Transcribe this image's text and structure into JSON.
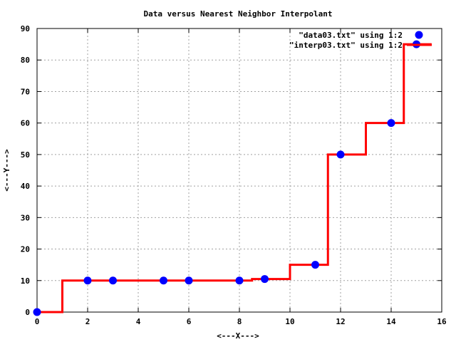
{
  "chart_data": {
    "type": "scatter",
    "title": "Data versus Nearest Neighbor Interpolant",
    "xlabel": "<---X--->",
    "ylabel": "<---Y--->",
    "xlim": [
      0,
      16
    ],
    "ylim": [
      0,
      90
    ],
    "xticks": [
      0,
      2,
      4,
      6,
      8,
      10,
      12,
      14,
      16
    ],
    "yticks": [
      0,
      10,
      20,
      30,
      40,
      50,
      60,
      70,
      80,
      90
    ],
    "grid": true,
    "legend_position": "top-right",
    "series": [
      {
        "name": "\"data03.txt\" using 1:2",
        "kind": "points",
        "color": "#0000ff",
        "x": [
          0,
          2,
          3,
          5,
          6,
          8,
          9,
          11,
          12,
          14,
          15
        ],
        "y": [
          0,
          10,
          10,
          10,
          10,
          10,
          10.5,
          15,
          50,
          60,
          85
        ]
      },
      {
        "name": "\"interp03.txt\" using 1:2",
        "kind": "step",
        "color": "#ff0000",
        "x": [
          0,
          1,
          1,
          8.5,
          8.5,
          10,
          10,
          11.5,
          11.5,
          13,
          13,
          14.5,
          14.5,
          15.6
        ],
        "y": [
          0,
          0,
          10,
          10,
          10.5,
          10.5,
          15,
          15,
          50,
          50,
          60,
          60,
          85,
          85
        ]
      }
    ]
  }
}
